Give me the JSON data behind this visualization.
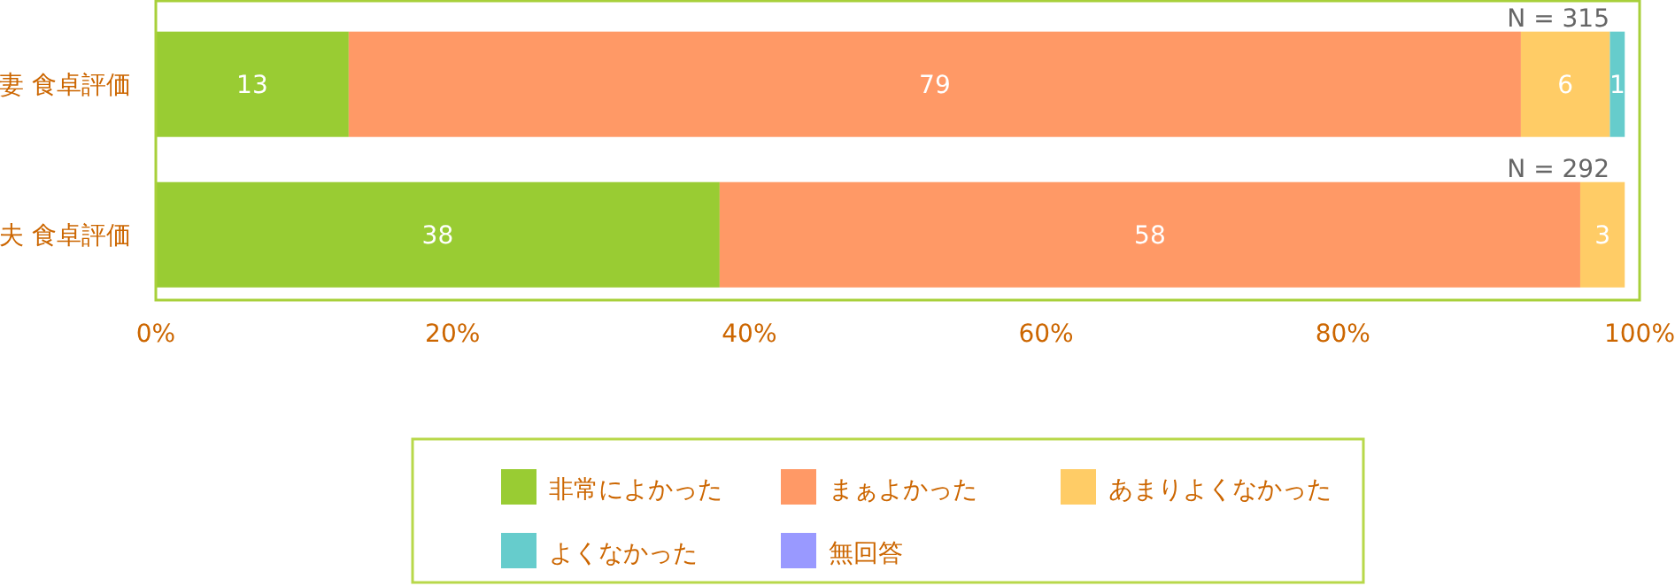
{
  "chart_data": {
    "type": "bar",
    "orientation": "horizontal",
    "stacked": true,
    "data_labels": true,
    "legend": "bottom",
    "categories": [
      "妻 食卓評価",
      "夫 食卓評価"
    ],
    "series": [
      {
        "name": "非常によかった",
        "color": "#99cc33",
        "values": [
          13,
          38
        ]
      },
      {
        "name": "まぁよかった",
        "color": "#ff9966",
        "values": [
          79,
          58
        ]
      },
      {
        "name": "あまりよくなかった",
        "color": "#ffcc66",
        "values": [
          6,
          3
        ]
      },
      {
        "name": "よくなかった",
        "color": "#66cccc",
        "values": [
          1,
          null
        ]
      },
      {
        "name": "無回答",
        "color": "#9999ff",
        "values": [
          null,
          null
        ]
      }
    ],
    "xlim": [
      0,
      100
    ],
    "xticks": [
      {
        "value": 0,
        "label": "0%"
      },
      {
        "value": 20,
        "label": "20%"
      },
      {
        "value": 40,
        "label": "40%"
      },
      {
        "value": 60,
        "label": "60%"
      },
      {
        "value": 80,
        "label": "80%"
      },
      {
        "value": 100,
        "label": "100%"
      }
    ],
    "annotations": [
      "N = 315",
      "N = 292"
    ]
  }
}
